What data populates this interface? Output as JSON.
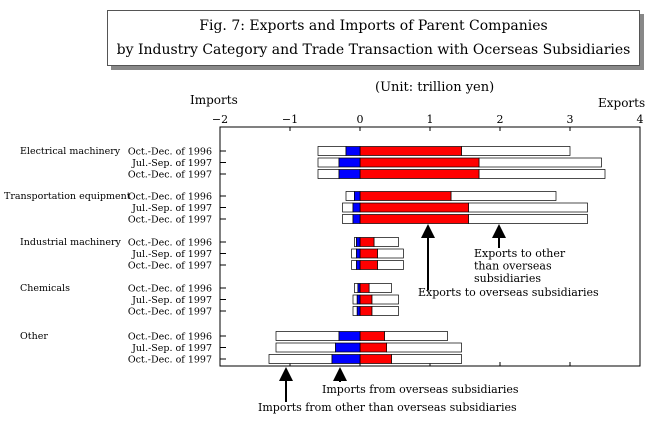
{
  "header": {
    "title_line1": "Fig. 7: Exports and Imports of Parent Companies",
    "title_line2": "by Industry Category and Trade Transaction with Ocerseas Subsidiaries",
    "unit": "(Unit: trillion yen)",
    "left_label": "Imports",
    "right_label": "Exports"
  },
  "chart_data": {
    "type": "bar",
    "orientation": "horizontal-stacked-diverging",
    "xlim": [
      -2,
      4
    ],
    "xticks": [
      "−2",
      "−1",
      "0",
      "1",
      "2",
      "3",
      "4"
    ],
    "grid": false,
    "series": [
      {
        "name": "Exports to overseas subsidiaries",
        "color": "#ff0000"
      },
      {
        "name": "Exports to other than overseas subsidiaries",
        "color": "#ffffff"
      },
      {
        "name": "Imports from overseas subsidiaries",
        "color": "#0000ff"
      },
      {
        "name": "Imports from other than overseas subsidiaries",
        "color": "#ffffff"
      }
    ],
    "groups": [
      {
        "name": "Electrical machinery",
        "rows": [
          {
            "period": "Oct.-Dec. of 1996",
            "exp_sub": 1.45,
            "exp_total": 3.0,
            "imp_sub": -0.2,
            "imp_total": -0.6
          },
          {
            "period": "Jul.-Sep. of 1997",
            "exp_sub": 1.7,
            "exp_total": 3.45,
            "imp_sub": -0.3,
            "imp_total": -0.6
          },
          {
            "period": "Oct.-Dec. of 1997",
            "exp_sub": 1.7,
            "exp_total": 3.5,
            "imp_sub": -0.3,
            "imp_total": -0.6
          }
        ]
      },
      {
        "name": "Transportation equipment",
        "rows": [
          {
            "period": "Oct.-Dec. of 1996",
            "exp_sub": 1.3,
            "exp_total": 2.8,
            "imp_sub": -0.08,
            "imp_total": -0.2
          },
          {
            "period": "Jul.-Sep. of 1997",
            "exp_sub": 1.55,
            "exp_total": 3.25,
            "imp_sub": -0.1,
            "imp_total": -0.25
          },
          {
            "period": "Oct.-Dec. of 1997",
            "exp_sub": 1.55,
            "exp_total": 3.25,
            "imp_sub": -0.1,
            "imp_total": -0.25
          }
        ]
      },
      {
        "name": "Industrial machinery",
        "rows": [
          {
            "period": "Oct.-Dec. of 1996",
            "exp_sub": 0.2,
            "exp_total": 0.55,
            "imp_sub": -0.05,
            "imp_total": -0.08
          },
          {
            "period": "Jul.-Sep. of 1997",
            "exp_sub": 0.25,
            "exp_total": 0.62,
            "imp_sub": -0.05,
            "imp_total": -0.12
          },
          {
            "period": "Oct.-Dec. of 1997",
            "exp_sub": 0.25,
            "exp_total": 0.62,
            "imp_sub": -0.05,
            "imp_total": -0.12
          }
        ]
      },
      {
        "name": "Chemicals",
        "rows": [
          {
            "period": "Oct.-Dec. of 1996",
            "exp_sub": 0.13,
            "exp_total": 0.45,
            "imp_sub": -0.03,
            "imp_total": -0.08
          },
          {
            "period": "Jul.-Sep. of 1997",
            "exp_sub": 0.17,
            "exp_total": 0.55,
            "imp_sub": -0.04,
            "imp_total": -0.1
          },
          {
            "period": "Oct.-Dec. of 1997",
            "exp_sub": 0.17,
            "exp_total": 0.55,
            "imp_sub": -0.04,
            "imp_total": -0.1
          }
        ]
      },
      {
        "name": "Other",
        "rows": [
          {
            "period": "Oct.-Dec. of 1996",
            "exp_sub": 0.35,
            "exp_total": 1.25,
            "imp_sub": -0.3,
            "imp_total": -1.2
          },
          {
            "period": "Jul.-Sep. of 1997",
            "exp_sub": 0.38,
            "exp_total": 1.45,
            "imp_sub": -0.35,
            "imp_total": -1.2
          },
          {
            "period": "Oct.-Dec. of 1997",
            "exp_sub": 0.45,
            "exp_total": 1.45,
            "imp_sub": -0.4,
            "imp_total": -1.3
          }
        ]
      }
    ],
    "annotations": {
      "exports_other": [
        "Exports to other",
        "than overseas",
        "subsidiaries"
      ],
      "exports_sub": [
        "Exports to overseas subsidiaries"
      ],
      "imports_sub": [
        "Imports from overseas subsidiaries"
      ],
      "imports_other": [
        "Imports from other than overseas subsidiaries"
      ]
    }
  }
}
